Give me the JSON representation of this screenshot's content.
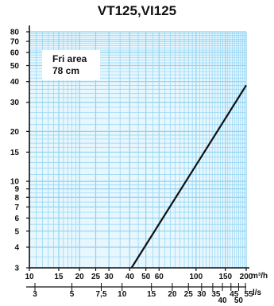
{
  "chart_data": {
    "type": "line",
    "title": "VT125,VI125",
    "annotation": [
      "Fri area",
      "78 cm"
    ],
    "x_axis": {
      "scale": "log",
      "unit": "m³/h",
      "ticks": [
        10,
        15,
        20,
        25,
        30,
        40,
        50,
        60,
        100,
        150,
        200
      ],
      "tick_labels": [
        "10",
        "15",
        "20",
        "25",
        "30",
        "40",
        "50",
        "60",
        "100",
        "150",
        "200"
      ]
    },
    "x_axis_secondary": {
      "scale": "log",
      "unit": "l/s",
      "ticks": [
        3,
        5,
        7.5,
        10,
        15,
        20,
        25,
        30,
        35,
        40,
        45,
        50,
        55
      ],
      "tick_labels": [
        "3",
        "5",
        "7,5",
        "10",
        "15",
        "20",
        "25",
        "30",
        "35",
        "40",
        "45",
        "50",
        "55"
      ]
    },
    "y_axis": {
      "scale": "log",
      "ticks": [
        3,
        4,
        5,
        6,
        7,
        8,
        9,
        10,
        15,
        20,
        30,
        40,
        50,
        60,
        70,
        80
      ],
      "tick_labels": [
        "3",
        "4",
        "5",
        "6",
        "7",
        "8",
        "9",
        "10",
        "15",
        "20",
        "30",
        "40",
        "50",
        "60",
        "70",
        "80"
      ]
    },
    "xlim": [
      10,
      200
    ],
    "ylim": [
      3,
      80
    ],
    "grid": true,
    "series": [
      {
        "x": [
          41,
          200
        ],
        "y": [
          3,
          38
        ]
      }
    ],
    "colors": {
      "grid": "#8fd4f2",
      "plot_background": "#e8f6fd",
      "axis": "#111111",
      "line": "#111111"
    }
  }
}
